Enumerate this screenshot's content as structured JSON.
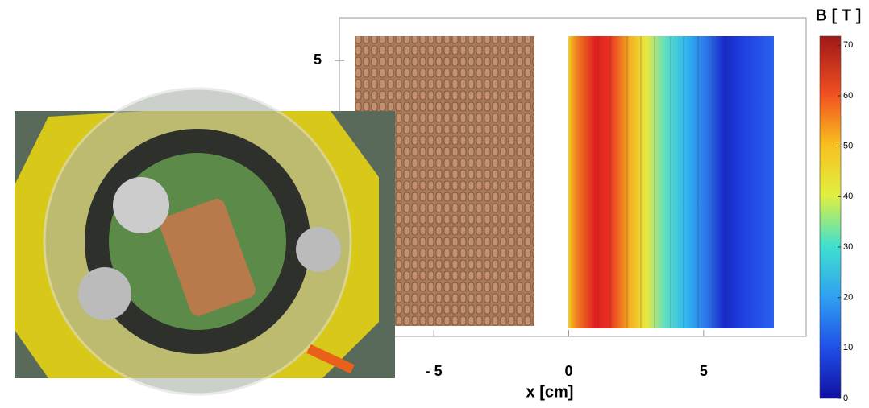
{
  "figure": {
    "plot": {
      "xlabel": "x [cm]",
      "xlim": [
        -8.5,
        8.8
      ],
      "xticks": [
        {
          "value": -5,
          "label": "- 5"
        },
        0,
        5
      ],
      "ylim": [
        -5.3,
        6.6
      ],
      "yticks": [
        5
      ]
    },
    "colorbar": {
      "label": "B [ T ]",
      "lim": [
        0,
        71.8
      ],
      "ticks": [
        0,
        10,
        20,
        30,
        40,
        50,
        60,
        70
      ]
    }
  }
}
